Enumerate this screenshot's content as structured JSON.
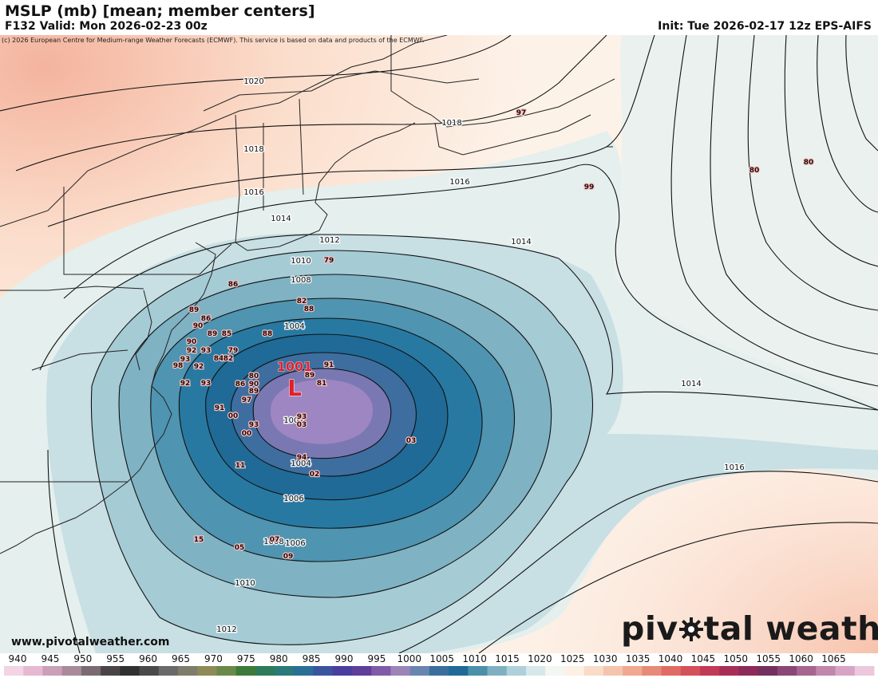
{
  "header": {
    "title": "MSLP (mb) [mean; member centers]",
    "valid": "F132 Valid: Mon 2026-02-23 00z",
    "init": "Init: Tue 2026-02-17 12z EPS-AIFS",
    "copyright": "(c) 2026 European Centre for Medium-range Weather Forecasts (ECMWF). This service is based on data and products of the ECMWF."
  },
  "footer": {
    "website": "www.pivotalweather.com",
    "brand_before": "piv",
    "brand_after": "tal weather"
  },
  "low_center": {
    "label": "L",
    "value": "1001",
    "color": "#e0202a"
  },
  "isobar_labels": [
    "1020",
    "1018",
    "1018",
    "1016",
    "1016",
    "1014",
    "1014",
    "1014",
    "1012",
    "1010",
    "1008",
    "1006",
    "1004",
    "1002",
    "1004",
    "1006",
    "1008",
    "1010",
    "1012",
    "1016"
  ],
  "member_centers": [
    "97",
    "99",
    "80",
    "80",
    "79",
    "86",
    "89",
    "82",
    "88",
    "86",
    "90",
    "89",
    "85",
    "90",
    "92",
    "93",
    "79",
    "93",
    "84",
    "82",
    "98",
    "92",
    "88",
    "91",
    "92",
    "93",
    "80",
    "89",
    "81",
    "86",
    "90",
    "89",
    "97",
    "91",
    "00",
    "93",
    "03",
    "93",
    "00",
    "03",
    "11",
    "94",
    "02",
    "15",
    "07",
    "05",
    "09"
  ],
  "scale": {
    "unit": "mb",
    "labels": [
      "940",
      "945",
      "950",
      "955",
      "960",
      "965",
      "970",
      "975",
      "980",
      "985",
      "990",
      "995",
      "1000",
      "1005",
      "1010",
      "1015",
      "1020",
      "1025",
      "1030",
      "1035",
      "1040",
      "1045",
      "1050",
      "1055",
      "1060",
      "1065"
    ],
    "palette": [
      "#f2d4e4",
      "#e6b8d2",
      "#c9a0b8",
      "#a88a9a",
      "#7a6a72",
      "#4a4448",
      "#303030",
      "#4a4a4a",
      "#6a6a6a",
      "#7e7c6a",
      "#8e8a5a",
      "#6a8a4a",
      "#3f7a3a",
      "#2f7a5a",
      "#2a7a7a",
      "#2a6f95",
      "#3a54a0",
      "#4a3ea0",
      "#5e3f9a",
      "#7f5ba8",
      "#9c84b8",
      "#6a86b0",
      "#3a6f9c",
      "#1f6a96",
      "#4a90aa",
      "#7fb0c2",
      "#aed0da",
      "#d6e8ea",
      "#f4f6f2",
      "#fdf0e4",
      "#f9dcc8",
      "#f5c4ae",
      "#f0a890",
      "#e88a78",
      "#e06a64",
      "#d4505a",
      "#c33a56",
      "#a82e58",
      "#8c2a5a",
      "#74305e",
      "#8a4876",
      "#a66690",
      "#c286ac",
      "#d8a4c4",
      "#ecc8dc"
    ]
  },
  "colors": {
    "low": "#e0202a",
    "deep_blue": "#1f6a96",
    "purple_core": "#9c84c4",
    "warm": "#f5c4ae"
  }
}
